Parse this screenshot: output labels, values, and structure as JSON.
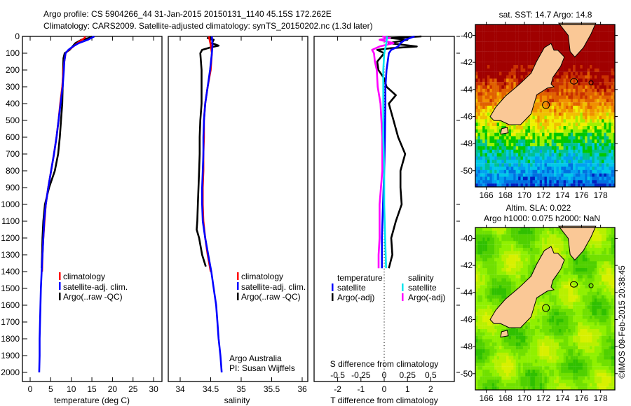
{
  "header": {
    "line1": "Argo profile: CS 5904266_44 31-Jan-2015 20150131_1140 45.15S 172.262E",
    "line2": "Climatology: CARS2009. Satellite-adjusted climatology: synTS_20150202.nc (1.3d later)"
  },
  "credit": {
    "institution": "Argo Australia",
    "pi": "PI: Susan Wijffels",
    "stamp": "©IMOS 09-Feb-2015 20:38:45"
  },
  "colors": {
    "climatology": "#ff0000",
    "satellite": "#0000ff",
    "argo": "#000000",
    "sal_sat": "#00e5ee",
    "sal_argo": "#ff00ff"
  },
  "chart_data": [
    {
      "type": "line",
      "id": "temperature",
      "xlabel": "temperature (deg C)",
      "ylabel": "",
      "xlim": [
        -1.8,
        32
      ],
      "ylim": [
        2060,
        0
      ],
      "xticks": [
        "0",
        "5",
        "10",
        "15",
        "20",
        "25",
        "30"
      ],
      "xtick_values": [
        0,
        5,
        10,
        15,
        20,
        25,
        30
      ],
      "yticks": [
        "0",
        "100",
        "200",
        "300",
        "400",
        "500",
        "600",
        "700",
        "800",
        "900",
        "1000",
        "1100",
        "1200",
        "1300",
        "1400",
        "1500",
        "1600",
        "1700",
        "1800",
        "1900",
        "2000"
      ],
      "ytick_values": [
        0,
        100,
        200,
        300,
        400,
        500,
        600,
        700,
        800,
        900,
        1000,
        1100,
        1200,
        1300,
        1400,
        1500,
        1600,
        1700,
        1800,
        1900,
        2000
      ],
      "legend": [
        "climatology",
        "satellite-adj. clim.",
        "Argo(..raw -QC)"
      ],
      "series": [
        {
          "name": "Argo(..raw -QC)",
          "color": "#000000",
          "depth": [
            0,
            10,
            20,
            40,
            60,
            80,
            100,
            130,
            200,
            300,
            400,
            500,
            600,
            700,
            800,
            900,
            1000,
            1100,
            1200,
            1300,
            1380
          ],
          "values": [
            15.0,
            14.2,
            12.5,
            11.0,
            10.3,
            9.6,
            8.4,
            8.1,
            8.0,
            7.9,
            7.8,
            7.5,
            7.2,
            6.8,
            6.0,
            4.6,
            3.6,
            3.2,
            3.0,
            2.9,
            2.8
          ]
        },
        {
          "name": "climatology",
          "color": "#ff0000",
          "depth": [
            0,
            10,
            30,
            60,
            80,
            100,
            150,
            200,
            300,
            400,
            500,
            600,
            700,
            800,
            900,
            1000,
            1100,
            1200,
            1300,
            1400
          ],
          "values": [
            13.4,
            13.2,
            12.0,
            10.5,
            9.4,
            8.6,
            8.3,
            8.1,
            7.8,
            7.3,
            6.9,
            6.4,
            5.8,
            5.1,
            4.4,
            3.8,
            3.5,
            3.2,
            3.0,
            2.9
          ]
        },
        {
          "name": "satellite-adj. clim.",
          "color": "#0000ff",
          "depth": [
            0,
            20,
            40,
            60,
            80,
            100,
            150,
            200,
            300,
            400,
            500,
            600,
            700,
            800,
            900,
            1000,
            1100,
            1200,
            1300,
            1400,
            1500,
            1600,
            1700,
            1800,
            1900,
            2000
          ],
          "values": [
            15.6,
            14.0,
            11.8,
            10.4,
            9.3,
            8.6,
            8.3,
            8.2,
            7.9,
            7.4,
            6.9,
            6.4,
            5.8,
            5.1,
            4.4,
            3.8,
            3.4,
            3.2,
            3.0,
            2.8,
            2.6,
            2.5,
            2.4,
            2.3,
            2.3,
            2.2
          ]
        }
      ]
    },
    {
      "type": "line",
      "id": "salinity",
      "xlabel": "salinity",
      "xlim": [
        33.8,
        36.1
      ],
      "ylim": [
        2060,
        0
      ],
      "xticks": [
        "34",
        "34.5",
        "35",
        "35.5",
        "36"
      ],
      "xtick_values": [
        34,
        34.5,
        35,
        35.5,
        36
      ],
      "legend": [
        "climatology",
        "satellite-adj. clim.",
        "Argo(..raw -QC)"
      ],
      "series": [
        {
          "name": "Argo(..raw -QC)",
          "color": "#000000",
          "depth": [
            0,
            10,
            20,
            40,
            55,
            65,
            80,
            100,
            150,
            200,
            300,
            400,
            500,
            600,
            700,
            800,
            900,
            1000,
            1100,
            1150,
            1200,
            1300,
            1370
          ],
          "values": [
            34.5,
            34.45,
            34.55,
            34.52,
            34.63,
            34.5,
            34.36,
            34.33,
            34.34,
            34.35,
            34.35,
            34.35,
            34.33,
            34.32,
            34.32,
            34.31,
            34.3,
            34.29,
            34.28,
            34.27,
            34.31,
            34.36,
            34.42
          ]
        },
        {
          "name": "climatology",
          "color": "#ff0000",
          "depth": [
            0,
            50,
            100,
            200,
            300,
            400,
            500,
            600,
            700,
            800,
            900,
            1000,
            1100,
            1200,
            1300,
            1400
          ],
          "values": [
            34.47,
            34.5,
            34.52,
            34.5,
            34.45,
            34.41,
            34.39,
            34.39,
            34.38,
            34.38,
            34.37,
            34.37,
            34.38,
            34.41,
            34.45,
            34.5
          ]
        },
        {
          "name": "satellite-adj. clim.",
          "color": "#0000ff",
          "depth": [
            0,
            50,
            100,
            200,
            300,
            400,
            500,
            600,
            700,
            800,
            900,
            1000,
            1100,
            1200,
            1300,
            1400,
            1500,
            1600,
            1700,
            1800,
            1900,
            2000
          ],
          "values": [
            34.52,
            34.53,
            34.52,
            34.49,
            34.45,
            34.41,
            34.39,
            34.38,
            34.38,
            34.37,
            34.36,
            34.36,
            34.37,
            34.41,
            34.46,
            34.51,
            34.55,
            34.59,
            34.61,
            34.63,
            34.66,
            34.68
          ]
        }
      ]
    },
    {
      "type": "line",
      "id": "difference",
      "xlabel": "T difference from climatology",
      "x2label": "S difference from climatology",
      "xlim": [
        -3,
        3
      ],
      "ylim": [
        2060,
        0
      ],
      "xticks": [
        "-2",
        "-1",
        "0",
        "1",
        "2"
      ],
      "xtick_values": [
        -2,
        -1,
        0,
        1,
        2
      ],
      "x2ticks": [
        "-0.5",
        "-0.25",
        "0",
        "0.25",
        "0.5"
      ],
      "x2tick_values": [
        -0.5,
        -0.25,
        0,
        0.25,
        0.5
      ],
      "legend_headers": [
        "temperature",
        "salinity"
      ],
      "legend": [
        "satellite",
        "Argo(-adj)",
        "satellite",
        "Argo(-adj)"
      ],
      "series": [
        {
          "name": "temperature Argo(-adj)",
          "axis": "T",
          "color": "#000000",
          "depth": [
            0,
            10,
            20,
            40,
            60,
            70,
            80,
            100,
            150,
            200,
            250,
            300,
            350,
            400,
            500,
            600,
            700,
            800,
            900,
            1000,
            1100,
            1200,
            1300,
            1380
          ],
          "values": [
            1.6,
            0.3,
            1.0,
            0.2,
            1.4,
            0.3,
            -0.3,
            0.0,
            -0.3,
            -0.25,
            0.0,
            0.1,
            0.5,
            0.2,
            0.4,
            0.6,
            0.9,
            0.7,
            0.7,
            0.75,
            0.5,
            0.3,
            0.35,
            0.2
          ]
        },
        {
          "name": "temperature satellite",
          "axis": "T",
          "color": "#0000ff",
          "depth": [
            0,
            20,
            40,
            60,
            80,
            100,
            150,
            200,
            300,
            400,
            600,
            800,
            1000,
            1200,
            1380
          ],
          "values": [
            1.3,
            0.9,
            0.7,
            0.6,
            0.3,
            0.2,
            0.15,
            0.1,
            0.05,
            0.05,
            0.03,
            0.0,
            -0.05,
            -0.1,
            -0.1
          ]
        },
        {
          "name": "salinity Argo(-adj)",
          "axis": "S",
          "color": "#ff00ff",
          "depth": [
            0,
            10,
            20,
            40,
            60,
            80,
            100,
            150,
            200,
            300,
            400,
            500,
            600,
            800,
            1000,
            1100,
            1200,
            1300,
            1380
          ],
          "values": [
            -0.02,
            0.06,
            -0.05,
            0.1,
            -0.05,
            -0.13,
            -0.11,
            -0.1,
            -0.08,
            -0.07,
            -0.04,
            -0.03,
            -0.02,
            -0.02,
            -0.05,
            -0.05,
            -0.05,
            -0.06,
            -0.06
          ]
        },
        {
          "name": "salinity satellite",
          "axis": "S",
          "color": "#00e5ee",
          "depth": [
            0,
            50,
            100,
            200,
            400,
            600,
            800,
            1000,
            1200,
            1380
          ],
          "values": [
            0.03,
            0.02,
            0.0,
            -0.01,
            -0.01,
            -0.01,
            0.0,
            0.0,
            0.01,
            0.02
          ]
        }
      ]
    },
    {
      "type": "heatmap",
      "id": "sst_map",
      "title": "sat. SST: 14.7 Argo: 14.8",
      "xlim": [
        164.85,
        179.5
      ],
      "ylim": [
        -51.2,
        -39.2
      ],
      "xticks": [
        "166",
        "168",
        "170",
        "172",
        "174",
        "176",
        "178"
      ],
      "xtick_values": [
        166,
        168,
        170,
        172,
        174,
        176,
        178
      ],
      "yticks": [
        "-40",
        "-42",
        "-44",
        "-46",
        "-48",
        "-50"
      ],
      "ytick_values": [
        -40,
        -42,
        -44,
        -46,
        -48,
        -50
      ],
      "argo_position": [
        172.262,
        -45.15
      ]
    },
    {
      "type": "heatmap",
      "id": "sla_map",
      "title": "Altim. SLA: 0.022",
      "subtitle": "Argo h1000: 0.075 h2000: NaN",
      "xlim": [
        164.85,
        179.5
      ],
      "ylim": [
        -51.2,
        -39.2
      ],
      "xticks": [
        "166",
        "168",
        "170",
        "172",
        "174",
        "176",
        "178"
      ],
      "xtick_values": [
        166,
        168,
        170,
        172,
        174,
        176,
        178
      ],
      "yticks": [
        "-40",
        "-42",
        "-44",
        "-46",
        "-48",
        "-50"
      ],
      "ytick_values": [
        -40,
        -42,
        -44,
        -46,
        -48,
        -50
      ],
      "argo_position": [
        172.262,
        -45.15
      ]
    }
  ]
}
